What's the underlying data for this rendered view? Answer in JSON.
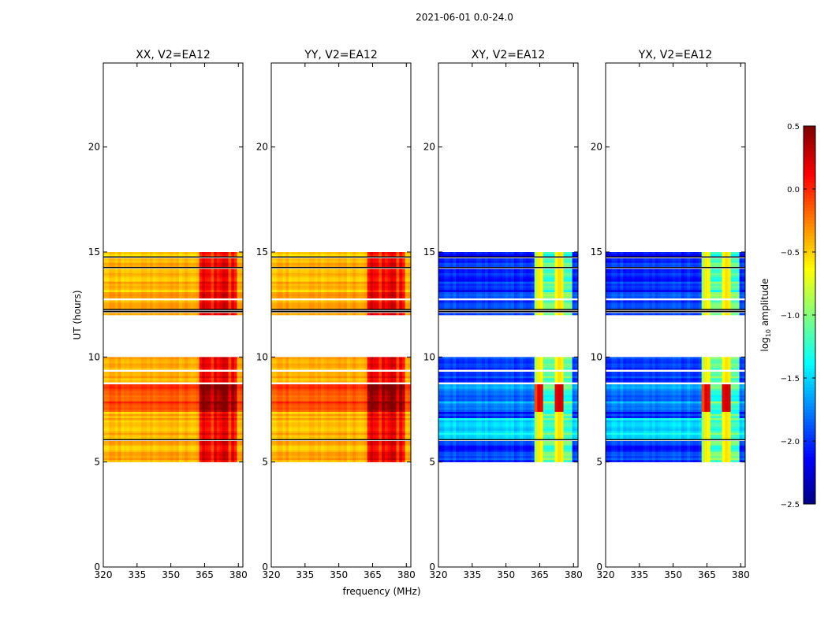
{
  "chart_data": {
    "type": "heatmap",
    "suptitle": "2021-06-01 0.0-24.0",
    "xlabel": "frequency (MHz)",
    "ylabel": "UT (hours)",
    "xlim": [
      320,
      382
    ],
    "ylim": [
      0,
      24
    ],
    "xticks": [
      320,
      335,
      350,
      365,
      380
    ],
    "yticks": [
      0,
      5,
      10,
      15,
      20
    ],
    "panels": [
      {
        "title": "XX, V2=EA12",
        "pol": "parallel"
      },
      {
        "title": "YY, V2=EA12",
        "pol": "parallel"
      },
      {
        "title": "XY, V2=EA12",
        "pol": "cross"
      },
      {
        "title": "YX, V2=EA12",
        "pol": "cross"
      }
    ],
    "data_time_ranges_hours": [
      [
        5.0,
        10.0
      ],
      [
        12.0,
        15.0
      ]
    ],
    "rfi_band_mhz": [
      362.5,
      380.0
    ],
    "colorbar": {
      "label": "log",
      "label_sub": "10",
      "label_rest": " amplitude",
      "ticks": [
        "0.5",
        "0.0",
        "−0.5",
        "−1.0",
        "−1.5",
        "−2.0",
        "−2.5"
      ],
      "tick_values": [
        0.5,
        0.0,
        -0.5,
        -1.0,
        -1.5,
        -2.0,
        -2.5
      ],
      "vmin": -2.5,
      "vmax": 0.5,
      "colormap": "jet"
    }
  }
}
